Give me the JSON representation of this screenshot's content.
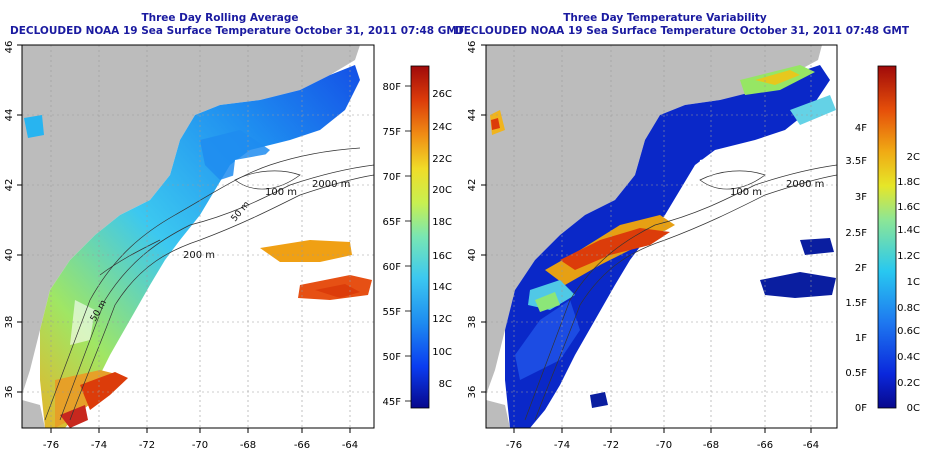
{
  "left": {
    "title1": "Three Day Rolling Average",
    "title2": "DECLOUDED NOAA 19 Sea Surface Temperature October 31, 2011 07:48 GMT",
    "x_ticks": [
      "-76",
      "-74",
      "-72",
      "-70",
      "-68",
      "-66",
      "-64"
    ],
    "y_ticks": [
      "36",
      "38",
      "40",
      "42",
      "44",
      "46"
    ],
    "contours": [
      "2000 m",
      "100 m",
      "200 m",
      "50 m",
      "50 m"
    ],
    "cbar_c": [
      "26C",
      "24C",
      "22C",
      "20C",
      "18C",
      "16C",
      "14C",
      "12C",
      "10C",
      "8C"
    ],
    "cbar_f": [
      "80F",
      "75F",
      "70F",
      "65F",
      "60F",
      "55F",
      "50F",
      "45F"
    ]
  },
  "right": {
    "title1": "Three Day Temperature Variability",
    "title2": "DECLOUDED NOAA 19 Sea Surface Temperature October 31, 2011 07:48 GMT",
    "x_ticks": [
      "-76",
      "-74",
      "-72",
      "-70",
      "-68",
      "-66",
      "-64"
    ],
    "y_ticks": [
      "36",
      "38",
      "40",
      "42",
      "44",
      "46"
    ],
    "contours": [
      "2000 m",
      "100 m"
    ],
    "cbar_f": [
      "4F",
      "3.5F",
      "3F",
      "2.5F",
      "2F",
      "1.5F",
      "1F",
      "0.5F",
      "0F"
    ],
    "cbar_c": [
      "2C",
      "1.8C",
      "1.6C",
      "1.4C",
      "1.2C",
      "1C",
      "0.8C",
      "0.6C",
      "0.4C",
      "0.2C",
      "0C"
    ]
  },
  "colors": {
    "land": "#bcbcbc",
    "sst_scale": [
      "#08088c",
      "#0a3cf0",
      "#1e8cf0",
      "#3cc8f0",
      "#78e6b4",
      "#c8f050",
      "#f0dc28",
      "#f08c14",
      "#dc3c0a",
      "#a00a0a"
    ],
    "title": "#1a1aa0"
  }
}
